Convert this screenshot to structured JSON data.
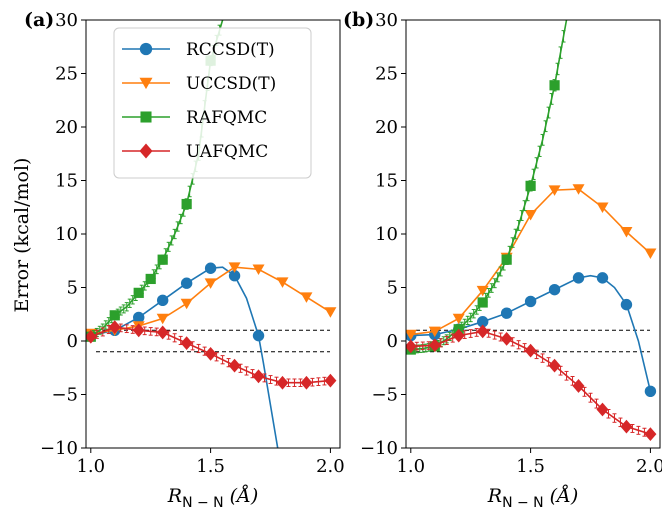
{
  "figure": {
    "ylabel": "Error (kcal/mol)",
    "xlabel_main": "R",
    "xlabel_sub": "N − N",
    "xlabel_unit": " (Å)"
  },
  "legend": {
    "placement": "upper-left of panel (a)",
    "entries": [
      {
        "label": "RCCSD(T)",
        "marker": "circle",
        "color": "#1f77b4"
      },
      {
        "label": "UCCSD(T)",
        "marker": "triangle-down",
        "color": "#ff7f0e"
      },
      {
        "label": "RAFQMC",
        "marker": "square",
        "color": "#2ca02c"
      },
      {
        "label": "UAFQMC",
        "marker": "diamond",
        "color": "#d62728"
      }
    ]
  },
  "chart_data": [
    {
      "panel": "(a)",
      "type": "line",
      "xlim": [
        0.98,
        2.04
      ],
      "ylim": [
        -10,
        30
      ],
      "xticks": [
        "1.0",
        "1.5",
        "2.0"
      ],
      "yticks": [
        "−10",
        "−5",
        "0",
        "5",
        "10",
        "15",
        "20",
        "25",
        "30"
      ],
      "reference_lines": [
        1,
        -1
      ],
      "series": [
        {
          "name": "RCCSD(T)",
          "color": "#1f77b4",
          "marker": "circle",
          "x": [
            1.0,
            1.1,
            1.2,
            1.3,
            1.4,
            1.5,
            1.6,
            1.7
          ],
          "y": [
            0.5,
            1.0,
            2.2,
            3.8,
            5.4,
            6.8,
            6.1,
            0.5
          ],
          "curve_x": [
            1.0,
            1.1,
            1.2,
            1.3,
            1.4,
            1.5,
            1.55,
            1.6,
            1.65,
            1.7,
            1.72,
            1.75,
            1.78
          ],
          "curve_y": [
            0.5,
            1.0,
            2.2,
            3.8,
            5.4,
            6.8,
            6.9,
            6.1,
            4.0,
            0.5,
            -2.0,
            -6.0,
            -10.0
          ]
        },
        {
          "name": "UCCSD(T)",
          "color": "#ff7f0e",
          "marker": "triangle-down",
          "x": [
            1.0,
            1.1,
            1.2,
            1.3,
            1.4,
            1.5,
            1.6,
            1.7,
            1.8,
            1.9,
            2.0
          ],
          "y": [
            0.7,
            1.0,
            1.4,
            2.1,
            3.5,
            5.4,
            6.9,
            6.7,
            5.5,
            4.1,
            2.7
          ]
        },
        {
          "name": "RAFQMC",
          "color": "#2ca02c",
          "marker": "square",
          "x": [
            1.0,
            1.1,
            1.2,
            1.25,
            1.3,
            1.4,
            1.5
          ],
          "y": [
            0.4,
            2.4,
            4.5,
            5.8,
            7.6,
            12.8,
            26.2
          ],
          "err": [
            0.5,
            0.6,
            0.7,
            0.8,
            0.8,
            1.0,
            1.2
          ],
          "curve_x": [
            1.0,
            1.05,
            1.1,
            1.15,
            1.2,
            1.25,
            1.3,
            1.35,
            1.4,
            1.45,
            1.5,
            1.55
          ],
          "curve_y": [
            0.4,
            1.2,
            2.4,
            3.2,
            4.5,
            5.8,
            7.6,
            10.0,
            12.8,
            17.5,
            26.2,
            30.0
          ]
        },
        {
          "name": "UAFQMC",
          "color": "#d62728",
          "marker": "diamond",
          "x": [
            1.0,
            1.1,
            1.2,
            1.3,
            1.4,
            1.5,
            1.6,
            1.7,
            1.8,
            1.9,
            2.0
          ],
          "y": [
            0.4,
            1.3,
            1.0,
            0.8,
            -0.2,
            -1.2,
            -2.3,
            -3.3,
            -3.9,
            -3.9,
            -3.7
          ],
          "err": [
            0.4,
            0.5,
            0.4,
            0.4,
            0.4,
            0.4,
            0.4,
            0.4,
            0.4,
            0.4,
            0.4
          ]
        }
      ]
    },
    {
      "panel": "(b)",
      "type": "line",
      "xlim": [
        0.98,
        2.04
      ],
      "ylim": [
        -10,
        30
      ],
      "xticks": [
        "1.0",
        "1.5",
        "2.0"
      ],
      "yticks": [
        "−10",
        "−5",
        "0",
        "5",
        "10",
        "15",
        "20",
        "25",
        "30"
      ],
      "reference_lines": [
        1,
        -1
      ],
      "series": [
        {
          "name": "RCCSD(T)",
          "color": "#1f77b4",
          "marker": "circle",
          "x": [
            1.0,
            1.1,
            1.2,
            1.3,
            1.4,
            1.5,
            1.6,
            1.7,
            1.8,
            1.9,
            2.0
          ],
          "y": [
            0.5,
            0.6,
            1.1,
            1.8,
            2.6,
            3.7,
            4.8,
            5.9,
            5.9,
            3.4,
            -4.7
          ],
          "curve_x": [
            1.0,
            1.1,
            1.2,
            1.3,
            1.4,
            1.5,
            1.6,
            1.7,
            1.75,
            1.8,
            1.85,
            1.9,
            1.95,
            2.0
          ],
          "curve_y": [
            0.5,
            0.6,
            1.1,
            1.8,
            2.6,
            3.7,
            4.8,
            5.9,
            6.1,
            5.9,
            5.0,
            3.4,
            0.0,
            -4.7
          ]
        },
        {
          "name": "UCCSD(T)",
          "color": "#ff7f0e",
          "marker": "triangle-down",
          "x": [
            1.0,
            1.1,
            1.2,
            1.3,
            1.4,
            1.5,
            1.6,
            1.7,
            1.8,
            1.9,
            2.0
          ],
          "y": [
            0.6,
            0.9,
            2.1,
            4.7,
            7.8,
            11.8,
            14.1,
            14.2,
            12.5,
            10.2,
            8.2
          ]
        },
        {
          "name": "RAFQMC",
          "color": "#2ca02c",
          "marker": "square",
          "x": [
            1.0,
            1.1,
            1.2,
            1.3,
            1.4,
            1.5,
            1.6
          ],
          "y": [
            -0.8,
            -0.5,
            1.1,
            3.6,
            7.6,
            14.5,
            23.9
          ],
          "err": [
            0.5,
            0.5,
            0.5,
            0.6,
            0.7,
            0.8,
            1.0
          ],
          "curve_x": [
            1.0,
            1.05,
            1.1,
            1.15,
            1.2,
            1.25,
            1.3,
            1.35,
            1.4,
            1.45,
            1.5,
            1.55,
            1.6,
            1.65
          ],
          "curve_y": [
            -0.8,
            -0.7,
            -0.5,
            0.2,
            1.1,
            2.2,
            3.6,
            5.4,
            7.6,
            10.8,
            14.5,
            18.8,
            23.9,
            30.0
          ]
        },
        {
          "name": "UAFQMC",
          "color": "#d62728",
          "marker": "diamond",
          "x": [
            1.0,
            1.1,
            1.2,
            1.3,
            1.4,
            1.5,
            1.6,
            1.7,
            1.8,
            1.9,
            2.0
          ],
          "y": [
            -0.5,
            -0.4,
            0.5,
            0.9,
            0.2,
            -0.9,
            -2.3,
            -4.2,
            -6.4,
            -8.0,
            -8.7
          ],
          "err": [
            0.4,
            0.5,
            0.4,
            0.4,
            0.4,
            0.4,
            0.4,
            0.4,
            0.4,
            0.4,
            0.4
          ]
        }
      ]
    }
  ]
}
